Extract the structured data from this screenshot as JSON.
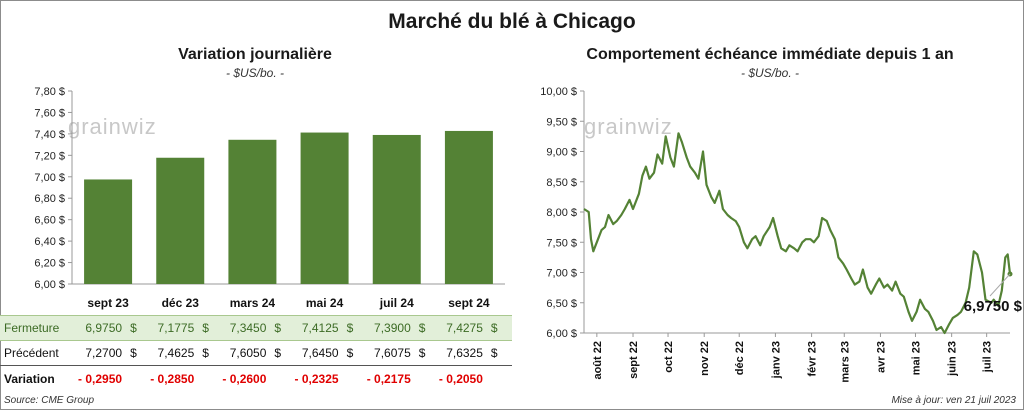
{
  "title": "Marché du blé à Chicago",
  "chart_data": [
    {
      "type": "bar",
      "title": "Variation  journalière",
      "subtitle": "- $US/bo. -",
      "categories": [
        "sept 23",
        "déc 23",
        "mars 24",
        "mai 24",
        "juil 24",
        "sept 24"
      ],
      "values": [
        6.975,
        7.1775,
        7.345,
        7.4125,
        7.39,
        7.4275
      ],
      "ylim": [
        6.0,
        7.8
      ],
      "y_ticks": [
        "7,80 $",
        "7,60 $",
        "7,40 $",
        "7,20 $",
        "7,00 $",
        "6,80 $",
        "6,60 $",
        "6,40 $",
        "6,20 $",
        "6,00 $"
      ],
      "bar_color": "#548235",
      "table": {
        "rows": [
          {
            "label": "Fermeture",
            "values": [
              "6,9750",
              "7,1775",
              "7,3450",
              "7,4125",
              "7,3900",
              "7,4275"
            ],
            "unit": "$"
          },
          {
            "label": "Précédent",
            "values": [
              "7,2700",
              "7,4625",
              "7,6050",
              "7,6450",
              "7,6075",
              "7,6325"
            ],
            "unit": "$"
          },
          {
            "label": "Variation",
            "values": [
              "- 0,2950",
              "- 0,2850",
              "- 0,2600",
              "- 0,2325",
              "- 0,2175",
              "- 0,2050"
            ],
            "unit": ""
          }
        ]
      }
    },
    {
      "type": "line",
      "title": "Comportement  échéance immédiate depuis 1 an",
      "subtitle": "- $US/bo. -",
      "ylim": [
        6.0,
        10.0
      ],
      "y_ticks": [
        "10,00 $",
        "9,50 $",
        "9,00 $",
        "8,50 $",
        "8,00 $",
        "7,50 $",
        "7,00 $",
        "6,50 $",
        "6,00 $"
      ],
      "x_ticks": [
        "août 22",
        "sept 22",
        "oct 22",
        "nov 22",
        "déc 22",
        "janv 23",
        "févr 23",
        "mars 23",
        "avr 23",
        "mai 23",
        "juin 23",
        "juil 23"
      ],
      "x_range": [
        "2022-07-21",
        "2023-07-21"
      ],
      "last_value_label": "6,9750 $",
      "line_color": "#548235",
      "series": [
        {
          "points": [
            [
              "2022-07-21",
              8.05
            ],
            [
              "2022-07-25",
              8.0
            ],
            [
              "2022-07-27",
              7.55
            ],
            [
              "2022-07-29",
              7.35
            ],
            [
              "2022-08-02",
              7.55
            ],
            [
              "2022-08-05",
              7.7
            ],
            [
              "2022-08-08",
              7.75
            ],
            [
              "2022-08-11",
              7.95
            ],
            [
              "2022-08-15",
              7.8
            ],
            [
              "2022-08-18",
              7.85
            ],
            [
              "2022-08-22",
              7.95
            ],
            [
              "2022-08-25",
              8.05
            ],
            [
              "2022-08-29",
              8.2
            ],
            [
              "2022-09-01",
              8.05
            ],
            [
              "2022-09-06",
              8.3
            ],
            [
              "2022-09-09",
              8.6
            ],
            [
              "2022-09-12",
              8.75
            ],
            [
              "2022-09-15",
              8.55
            ],
            [
              "2022-09-19",
              8.65
            ],
            [
              "2022-09-22",
              8.95
            ],
            [
              "2022-09-26",
              8.8
            ],
            [
              "2022-09-29",
              9.25
            ],
            [
              "2022-10-03",
              8.9
            ],
            [
              "2022-10-06",
              8.75
            ],
            [
              "2022-10-10",
              9.3
            ],
            [
              "2022-10-13",
              9.15
            ],
            [
              "2022-10-17",
              8.9
            ],
            [
              "2022-10-20",
              8.75
            ],
            [
              "2022-10-24",
              8.65
            ],
            [
              "2022-10-27",
              8.55
            ],
            [
              "2022-10-31",
              9.0
            ],
            [
              "2022-11-03",
              8.45
            ],
            [
              "2022-11-07",
              8.25
            ],
            [
              "2022-11-10",
              8.15
            ],
            [
              "2022-11-14",
              8.35
            ],
            [
              "2022-11-17",
              8.05
            ],
            [
              "2022-11-21",
              7.95
            ],
            [
              "2022-11-24",
              7.9
            ],
            [
              "2022-11-28",
              7.85
            ],
            [
              "2022-12-01",
              7.75
            ],
            [
              "2022-12-05",
              7.5
            ],
            [
              "2022-12-08",
              7.4
            ],
            [
              "2022-12-12",
              7.55
            ],
            [
              "2022-12-15",
              7.6
            ],
            [
              "2022-12-19",
              7.45
            ],
            [
              "2022-12-22",
              7.6
            ],
            [
              "2022-12-27",
              7.75
            ],
            [
              "2022-12-30",
              7.9
            ],
            [
              "2023-01-03",
              7.6
            ],
            [
              "2023-01-06",
              7.4
            ],
            [
              "2023-01-10",
              7.35
            ],
            [
              "2023-01-13",
              7.45
            ],
            [
              "2023-01-17",
              7.4
            ],
            [
              "2023-01-20",
              7.35
            ],
            [
              "2023-01-24",
              7.5
            ],
            [
              "2023-01-27",
              7.55
            ],
            [
              "2023-01-31",
              7.55
            ],
            [
              "2023-02-03",
              7.5
            ],
            [
              "2023-02-07",
              7.6
            ],
            [
              "2023-02-10",
              7.9
            ],
            [
              "2023-02-14",
              7.85
            ],
            [
              "2023-02-17",
              7.7
            ],
            [
              "2023-02-21",
              7.55
            ],
            [
              "2023-02-24",
              7.25
            ],
            [
              "2023-02-28",
              7.15
            ],
            [
              "2023-03-03",
              7.05
            ],
            [
              "2023-03-07",
              6.9
            ],
            [
              "2023-03-10",
              6.8
            ],
            [
              "2023-03-14",
              6.85
            ],
            [
              "2023-03-17",
              7.05
            ],
            [
              "2023-03-21",
              6.75
            ],
            [
              "2023-03-24",
              6.65
            ],
            [
              "2023-03-28",
              6.8
            ],
            [
              "2023-03-31",
              6.9
            ],
            [
              "2023-04-04",
              6.75
            ],
            [
              "2023-04-07",
              6.8
            ],
            [
              "2023-04-11",
              6.7
            ],
            [
              "2023-04-14",
              6.85
            ],
            [
              "2023-04-18",
              6.65
            ],
            [
              "2023-04-21",
              6.6
            ],
            [
              "2023-04-25",
              6.35
            ],
            [
              "2023-04-28",
              6.2
            ],
            [
              "2023-05-02",
              6.35
            ],
            [
              "2023-05-05",
              6.55
            ],
            [
              "2023-05-09",
              6.4
            ],
            [
              "2023-05-12",
              6.35
            ],
            [
              "2023-05-16",
              6.2
            ],
            [
              "2023-05-19",
              6.05
            ],
            [
              "2023-05-23",
              6.1
            ],
            [
              "2023-05-26",
              6.0
            ],
            [
              "2023-05-30",
              6.15
            ],
            [
              "2023-06-02",
              6.25
            ],
            [
              "2023-06-06",
              6.3
            ],
            [
              "2023-06-09",
              6.35
            ],
            [
              "2023-06-13",
              6.5
            ],
            [
              "2023-06-16",
              6.75
            ],
            [
              "2023-06-20",
              7.35
            ],
            [
              "2023-06-23",
              7.3
            ],
            [
              "2023-06-27",
              7.0
            ],
            [
              "2023-06-30",
              6.55
            ],
            [
              "2023-07-05",
              6.5
            ],
            [
              "2023-07-07",
              6.55
            ],
            [
              "2023-07-11",
              6.45
            ],
            [
              "2023-07-14",
              6.7
            ],
            [
              "2023-07-17",
              7.25
            ],
            [
              "2023-07-19",
              7.3
            ],
            [
              "2023-07-21",
              6.975
            ]
          ]
        }
      ]
    }
  ],
  "source": "Source: CME Group",
  "updated": "Mise à jour: ven 21 juil 2023",
  "logo_text": "grainwiz"
}
